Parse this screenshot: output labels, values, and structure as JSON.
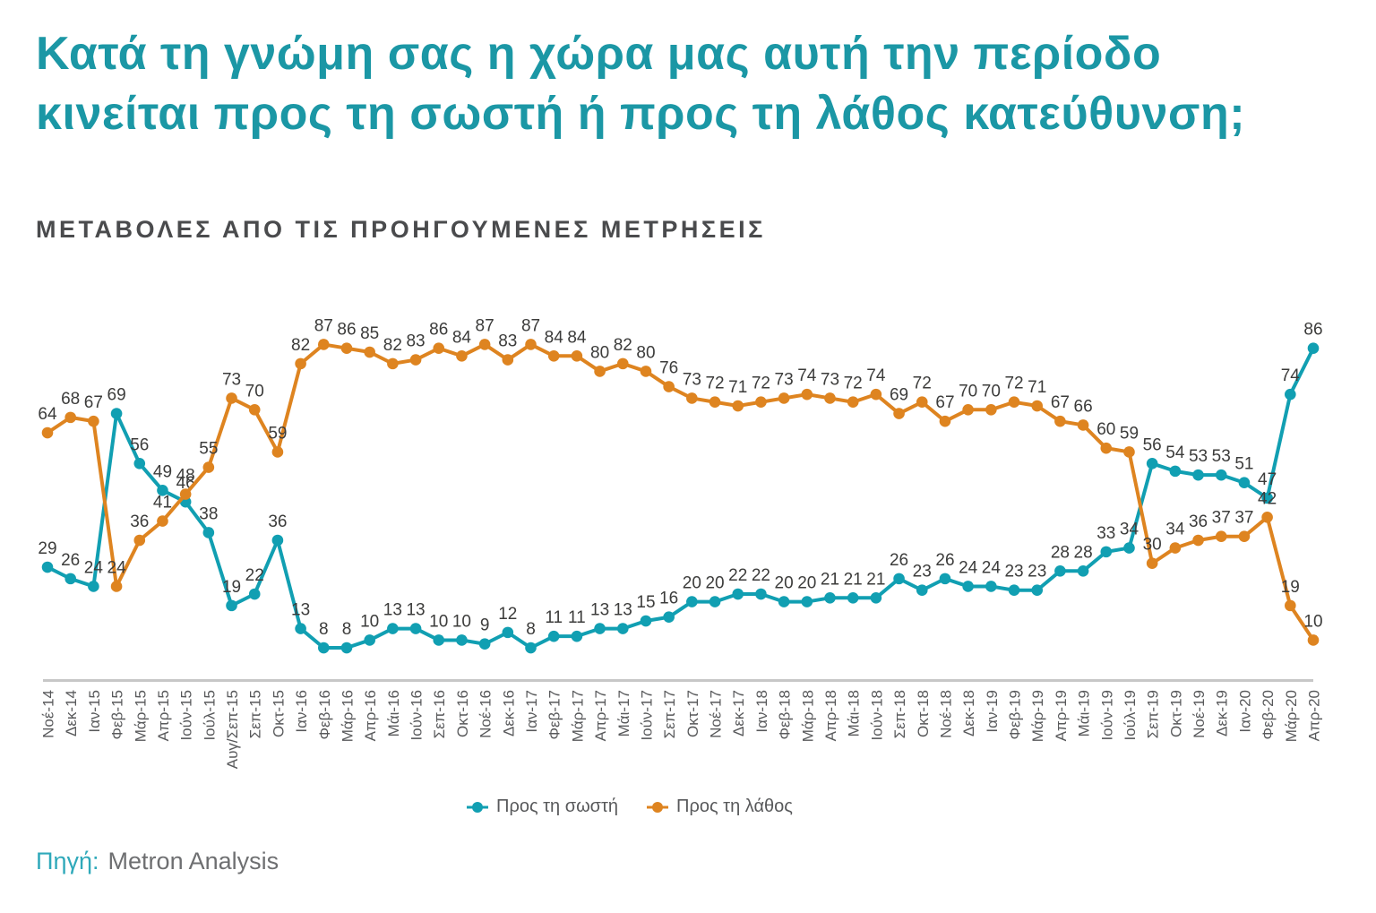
{
  "title_lines": [
    "Κατά τη γνώμη σας η χώρα μας αυτή την περίοδο",
    "κινείται προς τη σωστή ή προς τη λάθος κατεύθυνση;"
  ],
  "subtitle": "ΜΕΤΑΒΟΛΕΣ ΑΠΟ ΤΙΣ ΠΡΟΗΓΟΥΜΕΝΕΣ ΜΕΤΡΗΣΕΙΣ",
  "source": {
    "label": "Πηγή:",
    "text": "Metron Analysis"
  },
  "colors": {
    "right_direction": "#119FB2",
    "wrong_direction": "#DE8420",
    "title": "#1B97A5",
    "value_label": "#3C3C3B",
    "axis_label": "#58595B",
    "axis_line": "#C7C7C7"
  },
  "chart_data": {
    "type": "line",
    "title": "Κατά τη γνώμη σας η χώρα μας αυτή την περίοδο κινείται προς τη σωστή ή προς τη λάθος κατεύθυνση;",
    "subtitle": "ΜΕΤΑΒΟΛΕΣ ΑΠΟ ΤΙΣ ΠΡΟΗΓΟΥΜΕΝΕΣ ΜΕΤΡΗΣΕΙΣ",
    "ylim": [
      0,
      100
    ],
    "grid": false,
    "legend_position": "bottom",
    "value_labels": true,
    "categories": [
      "Νοέ-14",
      "Δεκ-14",
      "Ιαν-15",
      "Φεβ-15",
      "Μάρ-15",
      "Απρ-15",
      "Ιούν-15",
      "Ιούλ-15",
      "Αυγ/Σεπ-15",
      "Σεπ-15",
      "Οκτ-15",
      "Ιαν-16",
      "Φεβ-16",
      "Μάρ-16",
      "Απρ-16",
      "Μάι-16",
      "Ιούν-16",
      "Σεπ-16",
      "Οκτ-16",
      "Νοέ-16",
      "Δεκ-16",
      "Ιαν-17",
      "Φεβ-17",
      "Μάρ-17",
      "Απρ-17",
      "Μάι-17",
      "Ιούν-17",
      "Σεπ-17",
      "Οκτ-17",
      "Νοέ-17",
      "Δεκ-17",
      "Ιαν-18",
      "Φεβ-18",
      "Μάρ-18",
      "Απρ-18",
      "Μάι-18",
      "Ιούν-18",
      "Σεπ-18",
      "Οκτ-18",
      "Νοέ-18",
      "Δεκ-18",
      "Ιαν-19",
      "Φεβ-19",
      "Μάρ-19",
      "Απρ-19",
      "Μάι-19",
      "Ιούν-19",
      "Ιούλ-19",
      "Σεπ-19",
      "Οκτ-19",
      "Νοέ-19",
      "Δεκ-19",
      "Ιαν-20",
      "Φεβ-20",
      "Μάρ-20",
      "Απρ-20"
    ],
    "series": [
      {
        "name": "Προς τη σωστή",
        "color": "#119FB2",
        "values": [
          29,
          26,
          24,
          69,
          56,
          49,
          46,
          38,
          19,
          22,
          36,
          13,
          8,
          8,
          10,
          13,
          13,
          10,
          10,
          9,
          12,
          8,
          11,
          11,
          13,
          13,
          15,
          16,
          20,
          20,
          22,
          22,
          20,
          20,
          21,
          21,
          21,
          26,
          23,
          26,
          24,
          24,
          23,
          23,
          28,
          28,
          33,
          34,
          56,
          54,
          53,
          53,
          51,
          47,
          74,
          86
        ]
      },
      {
        "name": "Προς τη λάθος",
        "color": "#DE8420",
        "values": [
          64,
          68,
          67,
          24,
          36,
          41,
          48,
          55,
          73,
          70,
          59,
          82,
          87,
          86,
          85,
          82,
          83,
          86,
          84,
          87,
          83,
          87,
          84,
          84,
          80,
          82,
          80,
          76,
          73,
          72,
          71,
          72,
          73,
          74,
          73,
          72,
          74,
          69,
          72,
          67,
          70,
          70,
          72,
          71,
          67,
          66,
          60,
          59,
          30,
          34,
          36,
          37,
          37,
          42,
          19,
          10
        ]
      }
    ]
  }
}
